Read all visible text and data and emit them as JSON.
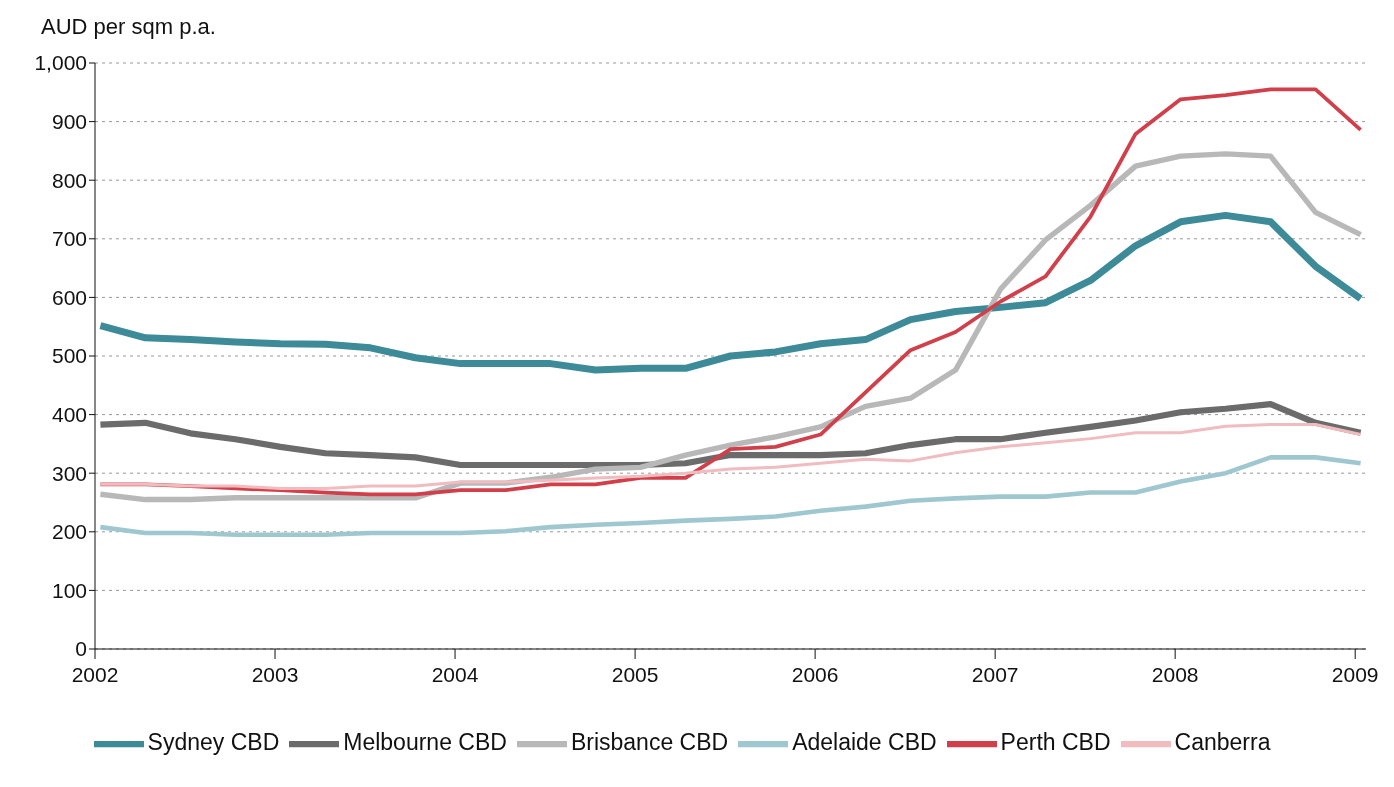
{
  "chart_data": {
    "type": "line",
    "ylabel": "AUD per sqm p.a.",
    "x": [
      2002.03,
      2002.28,
      2002.53,
      2002.78,
      2003.03,
      2003.28,
      2003.53,
      2003.78,
      2004.03,
      2004.28,
      2004.53,
      2004.78,
      2005.03,
      2005.28,
      2005.53,
      2005.78,
      2006.03,
      2006.28,
      2006.53,
      2006.78,
      2007.03,
      2007.28,
      2007.53,
      2007.78,
      2008.03,
      2008.28,
      2008.53,
      2008.78,
      2009.03
    ],
    "series": [
      {
        "name": "Sydney CBD",
        "color": "#3d8a99",
        "values": [
          552,
          531,
          528,
          524,
          521,
          520,
          514,
          497,
          487,
          487,
          487,
          476,
          479,
          479,
          500,
          507,
          521,
          528,
          562,
          576,
          583,
          591,
          629,
          688,
          729,
          740,
          729,
          653,
          598
        ]
      },
      {
        "name": "Melbourne CBD",
        "color": "#6b6b6b",
        "values": [
          383,
          386,
          368,
          358,
          345,
          334,
          331,
          327,
          314,
          314,
          314,
          314,
          314,
          317,
          331,
          331,
          331,
          334,
          348,
          358,
          358,
          369,
          379,
          390,
          404,
          410,
          418,
          386,
          369
        ]
      },
      {
        "name": "Brisbance CBD",
        "color": "#b8b8b8",
        "values": [
          264,
          255,
          255,
          258,
          258,
          258,
          258,
          258,
          283,
          283,
          293,
          307,
          310,
          331,
          348,
          362,
          379,
          414,
          428,
          476,
          614,
          698,
          757,
          824,
          841,
          845,
          841,
          745,
          707
        ]
      },
      {
        "name": "Adelaide CBD",
        "color": "#9fc7d0",
        "values": [
          208,
          198,
          198,
          195,
          195,
          195,
          198,
          198,
          198,
          201,
          208,
          212,
          215,
          219,
          222,
          226,
          236,
          243,
          253,
          257,
          260,
          260,
          267,
          267,
          286,
          300,
          327,
          327,
          317
        ]
      },
      {
        "name": "Perth CBD",
        "color": "#d1404a",
        "values": [
          281,
          281,
          278,
          274,
          271,
          267,
          264,
          264,
          271,
          271,
          281,
          281,
          292,
          292,
          341,
          345,
          366,
          438,
          510,
          541,
          593,
          636,
          738,
          879,
          938,
          945,
          955,
          955,
          886
        ]
      },
      {
        "name": "Canberra",
        "color": "#f0bcbf",
        "values": [
          281,
          281,
          278,
          278,
          274,
          274,
          278,
          278,
          285,
          285,
          288,
          292,
          295,
          300,
          307,
          310,
          317,
          324,
          321,
          335,
          345,
          352,
          359,
          369,
          369,
          380,
          383,
          383,
          366
        ]
      }
    ],
    "xlim": [
      2002,
      2009.06
    ],
    "xticks": [
      2002,
      2003,
      2004,
      2005,
      2006,
      2007,
      2008,
      2009
    ],
    "ylim": [
      0,
      1000
    ],
    "yticks": [
      0,
      100,
      200,
      300,
      400,
      500,
      600,
      700,
      800,
      900,
      {
        "value": 1000,
        "label": "1,000"
      }
    ],
    "grid": "y",
    "legend": "bottom"
  }
}
